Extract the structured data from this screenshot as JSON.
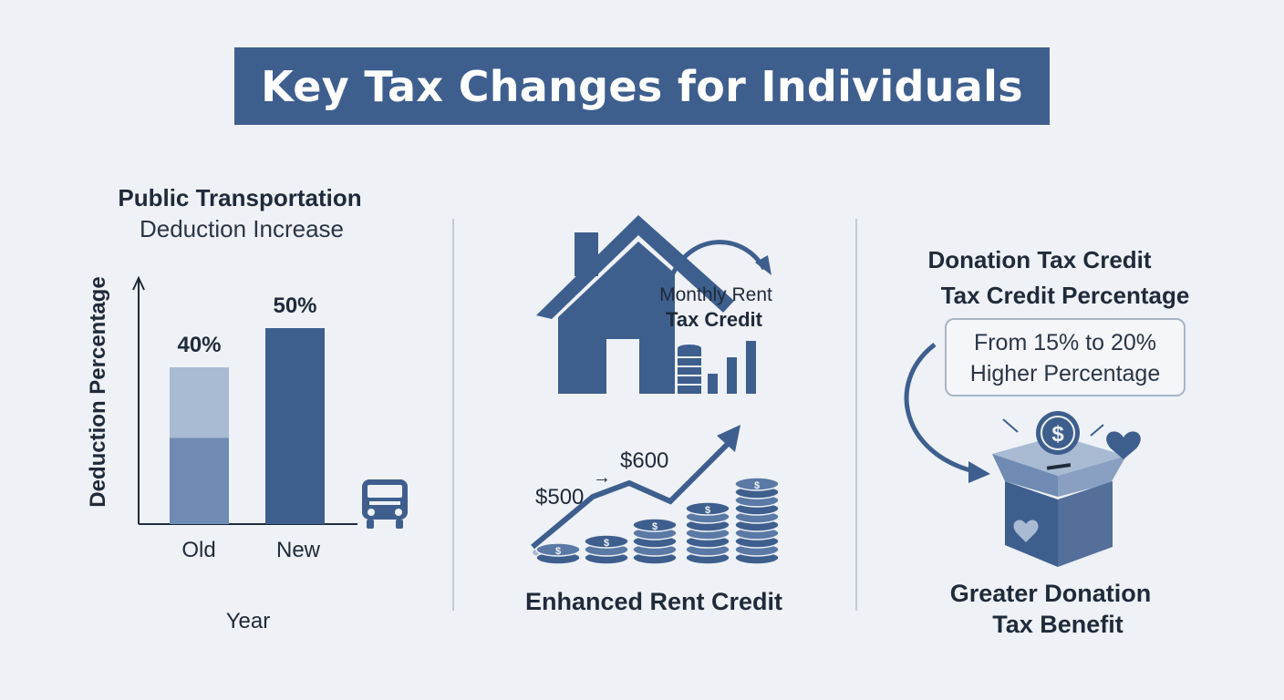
{
  "title": "Key Tax Changes for Individuals",
  "left_panel": {
    "title_line1": "Public Transportation",
    "title_line2": "Deduction Increase",
    "chart_data": {
      "type": "bar",
      "categories": [
        "Old",
        "New"
      ],
      "values": [
        40,
        50
      ],
      "value_labels": [
        "40%",
        "50%"
      ],
      "xlabel": "Year",
      "ylabel": "Deduction Percentage"
    },
    "icon": "bus-icon"
  },
  "middle_panel": {
    "house_label_line1": "Monthly Rent",
    "house_label_line2": "Tax Credit",
    "amount_old": "$500",
    "amount_new": "$600",
    "caption": "Enhanced Rent Credit",
    "icons": [
      "house-icon",
      "coin-stacks-icon",
      "rising-arrow-icon"
    ]
  },
  "right_panel": {
    "title_line1": "Donation Tax Credit",
    "title_line2": "Tax Credit Percentage",
    "box_line1": "From 15% to 20%",
    "box_line2": "Higher Percentage",
    "caption_line1": "Greater Donation",
    "caption_line2": "Tax Benefit",
    "icons": [
      "donation-box-icon",
      "dollar-coin-icon",
      "heart-icon"
    ]
  },
  "colors": {
    "primary": "#3e5f8e",
    "light_bar": "#a9bad3",
    "mid_bar": "#6f8bb3",
    "background": "#eef1f5"
  }
}
